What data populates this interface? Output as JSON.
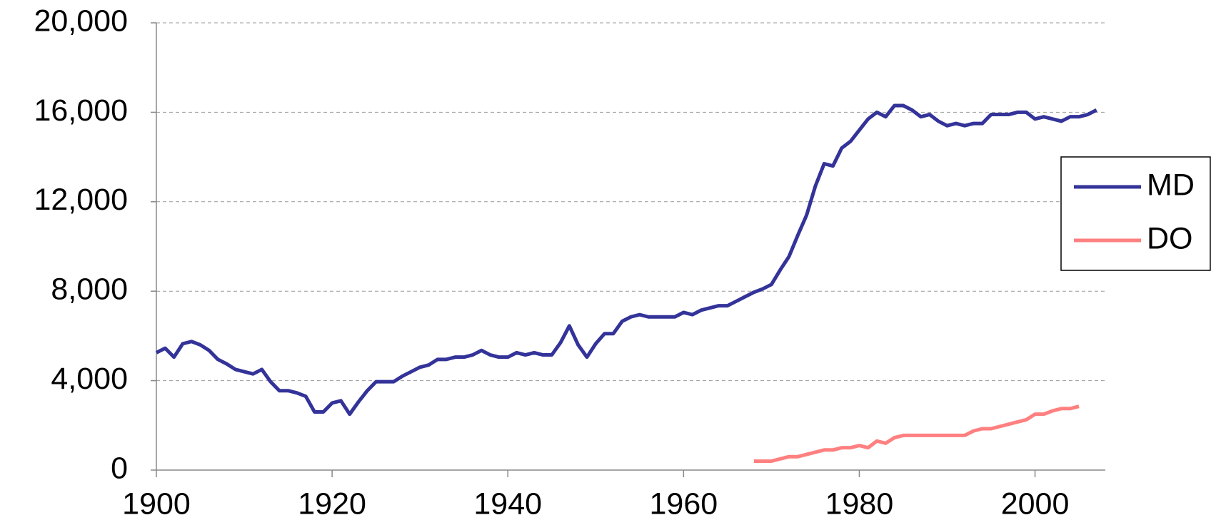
{
  "chart_data": {
    "type": "line",
    "xlim": [
      1900,
      2008
    ],
    "xticks": [
      1900,
      1920,
      1940,
      1960,
      1980,
      2000
    ],
    "ylim": [
      0,
      20000
    ],
    "yticks": [
      0,
      {
        "value": 4000,
        "label": "4,000"
      },
      {
        "value": 8000,
        "label": "8,000"
      },
      {
        "value": 12000,
        "label": "12,000"
      },
      {
        "value": 16000,
        "label": "16,000"
      },
      {
        "value": 20000,
        "label": "20,000"
      }
    ],
    "grid": true,
    "legend": "right",
    "series": [
      {
        "name": "MD",
        "color": "#333399",
        "x": [
          1900,
          1901,
          1902,
          1903,
          1904,
          1905,
          1906,
          1907,
          1908,
          1909,
          1910,
          1911,
          1912,
          1913,
          1914,
          1915,
          1916,
          1917,
          1918,
          1919,
          1920,
          1921,
          1922,
          1923,
          1924,
          1925,
          1926,
          1927,
          1928,
          1929,
          1930,
          1931,
          1932,
          1933,
          1934,
          1935,
          1936,
          1937,
          1938,
          1939,
          1940,
          1941,
          1942,
          1943,
          1944,
          1945,
          1946,
          1947,
          1948,
          1949,
          1950,
          1951,
          1952,
          1953,
          1954,
          1955,
          1956,
          1957,
          1958,
          1959,
          1960,
          1961,
          1962,
          1963,
          1964,
          1965,
          1966,
          1967,
          1968,
          1969,
          1970,
          1971,
          1972,
          1973,
          1974,
          1975,
          1976,
          1977,
          1978,
          1979,
          1980,
          1981,
          1982,
          1983,
          1984,
          1985,
          1986,
          1987,
          1988,
          1989,
          1990,
          1991,
          1992,
          1993,
          1994,
          1995,
          1996,
          1997,
          1998,
          1999,
          2000,
          2001,
          2002,
          2003,
          2004,
          2005,
          2006,
          2007
        ],
        "values": [
          5250,
          5450,
          5050,
          5650,
          5750,
          5600,
          5350,
          4950,
          4750,
          4500,
          4400,
          4300,
          4500,
          3950,
          3550,
          3550,
          3450,
          3300,
          2600,
          2600,
          3000,
          3100,
          2500,
          3050,
          3550,
          3950,
          3950,
          3950,
          4200,
          4400,
          4600,
          4700,
          4950,
          4950,
          5050,
          5050,
          5150,
          5350,
          5150,
          5050,
          5050,
          5250,
          5150,
          5250,
          5150,
          5150,
          5700,
          6450,
          5600,
          5050,
          5650,
          6100,
          6100,
          6650,
          6850,
          6950,
          6850,
          6850,
          6850,
          6850,
          7050,
          6950,
          7150,
          7250,
          7350,
          7350,
          7550,
          7750,
          7950,
          8100,
          8300,
          8950,
          9550,
          10500,
          11400,
          12700,
          13700,
          13600,
          14400,
          14700,
          15200,
          15700,
          16000,
          15800,
          16300,
          16300,
          16100,
          15800,
          15900,
          15600,
          15400,
          15500,
          15400,
          15500,
          15500,
          15900,
          15900,
          15900,
          16000,
          16000,
          15700,
          15800,
          15700,
          15600,
          15800,
          15800,
          15900,
          16100
        ]
      },
      {
        "name": "DO",
        "color": "#ff8080",
        "x": [
          1968,
          1969,
          1970,
          1971,
          1972,
          1973,
          1974,
          1975,
          1976,
          1977,
          1978,
          1979,
          1980,
          1981,
          1982,
          1983,
          1984,
          1985,
          1986,
          1987,
          1988,
          1989,
          1990,
          1991,
          1992,
          1993,
          1994,
          1995,
          1996,
          1997,
          1998,
          1999,
          2000,
          2001,
          2002,
          2003,
          2004,
          2005
        ],
        "values": [
          400,
          400,
          400,
          500,
          600,
          600,
          700,
          800,
          900,
          900,
          1000,
          1000,
          1100,
          1000,
          1300,
          1200,
          1450,
          1550,
          1550,
          1550,
          1550,
          1550,
          1550,
          1550,
          1550,
          1750,
          1850,
          1850,
          1950,
          2050,
          2150,
          2250,
          2500,
          2500,
          2650,
          2750,
          2750,
          2850
        ]
      }
    ]
  }
}
